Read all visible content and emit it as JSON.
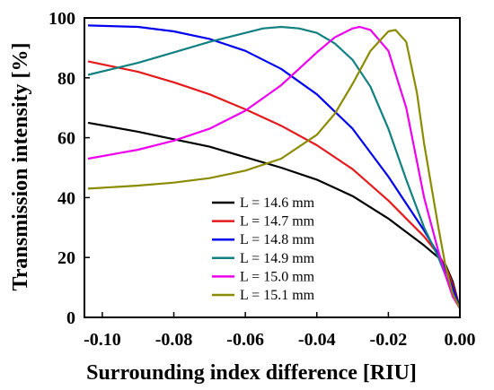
{
  "chart_data": {
    "type": "line",
    "title": "",
    "xlabel": "Surrounding index difference [RIU]",
    "ylabel": "Transmission intensity [%]",
    "xlim": [
      -0.105,
      0.0
    ],
    "ylim": [
      0,
      100
    ],
    "xticks": [
      -0.1,
      -0.08,
      -0.06,
      -0.04,
      -0.02,
      0.0
    ],
    "xtick_labels": [
      "-0.10",
      "-0.08",
      "-0.06",
      "-0.04",
      "-0.02",
      "0.00"
    ],
    "yticks": [
      0,
      20,
      40,
      60,
      80,
      100
    ],
    "ytick_labels": [
      "0",
      "20",
      "40",
      "60",
      "80",
      "100"
    ],
    "grid": false,
    "legend_position": "center",
    "series": [
      {
        "name": "L = 14.6 mm",
        "color": "#000000",
        "x": [
          -0.104,
          -0.09,
          -0.08,
          -0.07,
          -0.06,
          -0.05,
          -0.04,
          -0.03,
          -0.02,
          -0.015,
          -0.01,
          -0.006,
          -0.004,
          -0.002,
          0.0
        ],
        "y": [
          65,
          62,
          59.5,
          57,
          53.5,
          50,
          46,
          40.5,
          33,
          28.5,
          24,
          20,
          17.5,
          12,
          3
        ]
      },
      {
        "name": "L = 14.7 mm",
        "color": "#e41a1c",
        "x": [
          -0.104,
          -0.09,
          -0.08,
          -0.07,
          -0.06,
          -0.05,
          -0.04,
          -0.03,
          -0.02,
          -0.015,
          -0.01,
          -0.006,
          -0.004,
          -0.002,
          0.0
        ],
        "y": [
          85.5,
          82,
          78.5,
          74.5,
          69.5,
          64,
          57.5,
          49.5,
          39,
          33,
          27,
          21,
          17,
          11,
          3
        ]
      },
      {
        "name": "L = 14.8 mm",
        "color": "#0000ee",
        "x": [
          -0.104,
          -0.09,
          -0.08,
          -0.07,
          -0.06,
          -0.05,
          -0.04,
          -0.03,
          -0.02,
          -0.015,
          -0.01,
          -0.006,
          -0.004,
          -0.002,
          0.0
        ],
        "y": [
          97.5,
          97,
          95.5,
          93,
          89,
          83,
          74.5,
          63,
          47,
          38,
          29,
          21,
          16,
          10,
          3
        ]
      },
      {
        "name": "L = 14.9 mm",
        "color": "#108080",
        "x": [
          -0.104,
          -0.09,
          -0.08,
          -0.07,
          -0.06,
          -0.055,
          -0.05,
          -0.045,
          -0.04,
          -0.035,
          -0.03,
          -0.025,
          -0.02,
          -0.015,
          -0.01,
          -0.006,
          -0.004,
          -0.002,
          0.0
        ],
        "y": [
          81,
          85,
          88.5,
          92,
          95,
          96.5,
          97,
          96.5,
          95,
          91.5,
          86,
          77,
          63,
          46,
          30,
          20,
          14,
          8,
          3
        ]
      },
      {
        "name": "L = 15.0 mm",
        "color": "#ee00ee",
        "x": [
          -0.104,
          -0.09,
          -0.08,
          -0.07,
          -0.06,
          -0.05,
          -0.045,
          -0.04,
          -0.035,
          -0.03,
          -0.028,
          -0.025,
          -0.02,
          -0.015,
          -0.01,
          -0.006,
          -0.004,
          -0.002,
          0.0
        ],
        "y": [
          53,
          56,
          59,
          63,
          69,
          77.5,
          83,
          88.5,
          93.5,
          96.5,
          97,
          96,
          89,
          70,
          40,
          22,
          14,
          7,
          3
        ]
      },
      {
        "name": "L = 15.1 mm",
        "color": "#8b8b00",
        "x": [
          -0.104,
          -0.09,
          -0.08,
          -0.07,
          -0.06,
          -0.05,
          -0.04,
          -0.035,
          -0.03,
          -0.025,
          -0.02,
          -0.018,
          -0.015,
          -0.012,
          -0.01,
          -0.006,
          -0.004,
          -0.002,
          0.0
        ],
        "y": [
          43,
          44,
          45,
          46.5,
          49,
          53,
          61,
          68,
          78,
          89,
          95.5,
          96,
          92,
          75,
          58,
          30,
          17,
          8,
          3
        ]
      }
    ]
  }
}
